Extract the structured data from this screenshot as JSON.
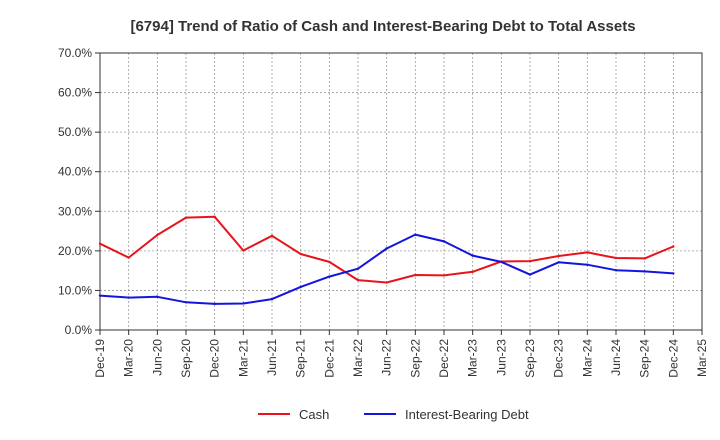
{
  "chart_data": {
    "type": "line",
    "title": "[6794]  Trend of Ratio of Cash and Interest-Bearing Debt to Total Assets",
    "xlabel": "",
    "ylabel": "",
    "x_ticks": [
      "Dec-19",
      "Mar-20",
      "Jun-20",
      "Sep-20",
      "Dec-20",
      "Mar-21",
      "Jun-21",
      "Sep-21",
      "Dec-21",
      "Mar-22",
      "Jun-22",
      "Sep-22",
      "Dec-22",
      "Mar-23",
      "Jun-23",
      "Sep-23",
      "Dec-23",
      "Mar-24",
      "Jun-24",
      "Sep-24",
      "Dec-24",
      "Mar-25"
    ],
    "categories": [
      "Dec-19",
      "Mar-20",
      "Jun-20",
      "Sep-20",
      "Dec-20",
      "Mar-21",
      "Jun-21",
      "Sep-21",
      "Dec-21",
      "Mar-22",
      "Jun-22",
      "Sep-22",
      "Dec-22",
      "Mar-23",
      "Jun-23",
      "Sep-23",
      "Dec-23",
      "Mar-24",
      "Jun-24",
      "Sep-24",
      "Dec-24"
    ],
    "y_ticks": [
      "0.0%",
      "10.0%",
      "20.0%",
      "30.0%",
      "40.0%",
      "50.0%",
      "60.0%",
      "70.0%"
    ],
    "ylim": [
      0,
      70
    ],
    "grid": true,
    "legend_position": "bottom",
    "series": [
      {
        "name": "Cash",
        "color": "#e8141b",
        "values": [
          21.8,
          18.3,
          24.0,
          28.4,
          28.6,
          20.1,
          23.8,
          19.2,
          17.2,
          12.6,
          12.0,
          13.9,
          13.8,
          14.7,
          17.3,
          17.4,
          18.7,
          19.6,
          18.2,
          18.1,
          21.1
        ]
      },
      {
        "name": "Interest-Bearing Debt",
        "color": "#1414e0",
        "values": [
          8.7,
          8.2,
          8.4,
          7.0,
          6.6,
          6.7,
          7.8,
          10.9,
          13.5,
          15.5,
          20.6,
          24.1,
          22.4,
          18.8,
          17.2,
          14.0,
          17.1,
          16.5,
          15.1,
          14.8,
          14.3
        ]
      }
    ]
  }
}
